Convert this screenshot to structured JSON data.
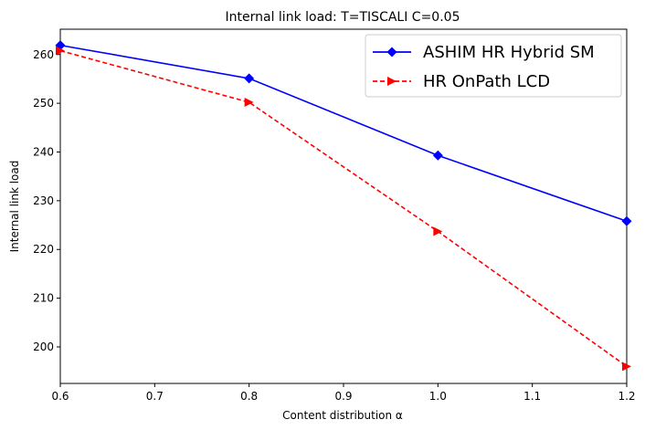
{
  "chart_data": {
    "type": "line",
    "title": "Internal link load: T=TISCALI C=0.05",
    "xlabel": "Content distribution α",
    "ylabel": "Internal link load",
    "xlim": [
      0.6,
      1.2
    ],
    "ylim": [
      192.5,
      265.2
    ],
    "xticks": [
      "0.6",
      "0.7",
      "0.8",
      "0.9",
      "1.0",
      "1.1",
      "1.2"
    ],
    "yticks": [
      "200",
      "210",
      "220",
      "230",
      "240",
      "250",
      "260"
    ],
    "grid": false,
    "legend_position": "top-right",
    "series": [
      {
        "name": "ASHIM HR Hybrid SM",
        "x": [
          0.6,
          0.8,
          1.0,
          1.2
        ],
        "y": [
          261.9,
          255.1,
          239.3,
          225.8
        ],
        "color": "#0000ff",
        "line_style": "solid",
        "marker": "diamond"
      },
      {
        "name": "HR OnPath LCD",
        "x": [
          0.6,
          0.8,
          1.0,
          1.2
        ],
        "y": [
          260.8,
          250.2,
          223.7,
          196.0
        ],
        "color": "#ff0000",
        "line_style": "dashed",
        "marker": "triangle-right"
      }
    ]
  }
}
